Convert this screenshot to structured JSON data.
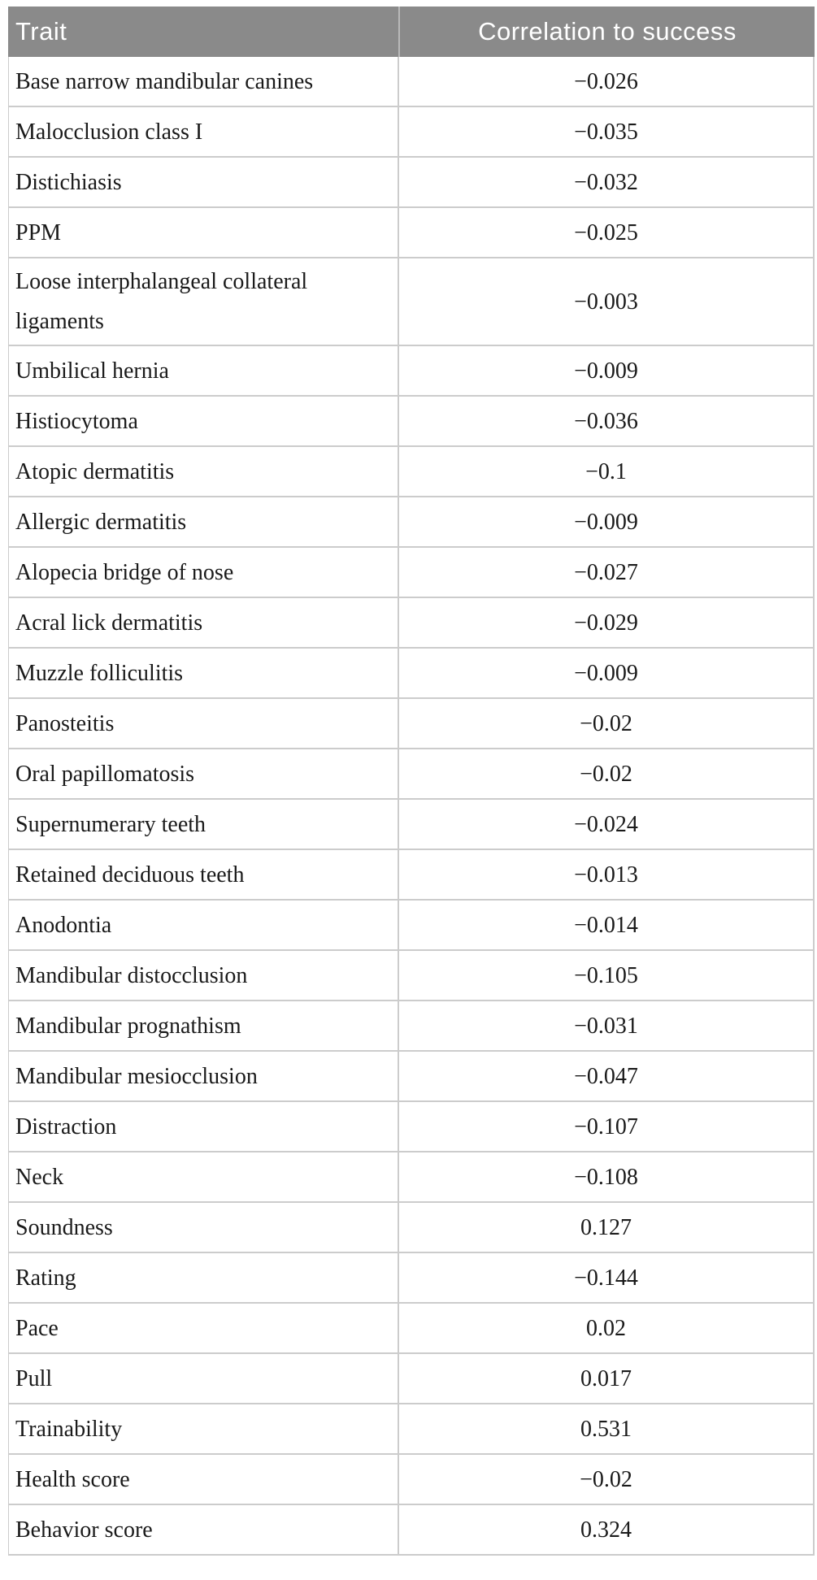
{
  "table": {
    "columns": [
      "Trait",
      "Correlation to success"
    ],
    "rows": [
      {
        "trait": "Base narrow mandibular canines",
        "correlation": "−0.026"
      },
      {
        "trait": "Malocclusion class I",
        "correlation": "−0.035"
      },
      {
        "trait": "Distichiasis",
        "correlation": "−0.032"
      },
      {
        "trait": "PPM",
        "correlation": "−0.025"
      },
      {
        "trait": "Loose interphalangeal collateral ligaments",
        "correlation": "−0.003"
      },
      {
        "trait": "Umbilical hernia",
        "correlation": "−0.009"
      },
      {
        "trait": "Histiocytoma",
        "correlation": "−0.036"
      },
      {
        "trait": "Atopic dermatitis",
        "correlation": "−0.1"
      },
      {
        "trait": "Allergic dermatitis",
        "correlation": "−0.009"
      },
      {
        "trait": "Alopecia bridge of nose",
        "correlation": "−0.027"
      },
      {
        "trait": "Acral lick dermatitis",
        "correlation": "−0.029"
      },
      {
        "trait": "Muzzle folliculitis",
        "correlation": "−0.009"
      },
      {
        "trait": "Panosteitis",
        "correlation": "−0.02"
      },
      {
        "trait": "Oral papillomatosis",
        "correlation": "−0.02"
      },
      {
        "trait": "Supernumerary teeth",
        "correlation": "−0.024"
      },
      {
        "trait": "Retained deciduous teeth",
        "correlation": "−0.013"
      },
      {
        "trait": "Anodontia",
        "correlation": "−0.014"
      },
      {
        "trait": "Mandibular distocclusion",
        "correlation": "−0.105"
      },
      {
        "trait": "Mandibular prognathism",
        "correlation": "−0.031"
      },
      {
        "trait": "Mandibular mesiocclusion",
        "correlation": "−0.047"
      },
      {
        "trait": "Distraction",
        "correlation": "−0.107"
      },
      {
        "trait": "Neck",
        "correlation": "−0.108"
      },
      {
        "trait": "Soundness",
        "correlation": "0.127"
      },
      {
        "trait": "Rating",
        "correlation": "−0.144"
      },
      {
        "trait": "Pace",
        "correlation": "0.02"
      },
      {
        "trait": "Pull",
        "correlation": "0.017"
      },
      {
        "trait": "Trainability",
        "correlation": "0.531"
      },
      {
        "trait": "Health score",
        "correlation": "−0.02"
      },
      {
        "trait": "Behavior score",
        "correlation": "0.324"
      }
    ],
    "colors": {
      "header_bg": "#8a8a8a",
      "header_text": "#ffffff",
      "header_divider": "#b9b9b9",
      "grid": "#cccccc",
      "body_text": "#1a1a1a"
    }
  },
  "chart_data": {
    "type": "table",
    "title": "",
    "columns": [
      "Trait",
      "Correlation to success"
    ],
    "traits": [
      "Base narrow mandibular canines",
      "Malocclusion class I",
      "Distichiasis",
      "PPM",
      "Loose interphalangeal collateral ligaments",
      "Umbilical hernia",
      "Histiocytoma",
      "Atopic dermatitis",
      "Allergic dermatitis",
      "Alopecia bridge of nose",
      "Acral lick dermatitis",
      "Muzzle folliculitis",
      "Panosteitis",
      "Oral papillomatosis",
      "Supernumerary teeth",
      "Retained deciduous teeth",
      "Anodontia",
      "Mandibular distocclusion",
      "Mandibular prognathism",
      "Mandibular mesiocclusion",
      "Distraction",
      "Neck",
      "Soundness",
      "Rating",
      "Pace",
      "Pull",
      "Trainability",
      "Health score",
      "Behavior score"
    ],
    "values": [
      -0.026,
      -0.035,
      -0.032,
      -0.025,
      -0.003,
      -0.009,
      -0.036,
      -0.1,
      -0.009,
      -0.027,
      -0.029,
      -0.009,
      -0.02,
      -0.02,
      -0.024,
      -0.013,
      -0.014,
      -0.105,
      -0.031,
      -0.047,
      -0.107,
      -0.108,
      0.127,
      -0.144,
      0.02,
      0.017,
      0.531,
      -0.02,
      0.324
    ]
  }
}
